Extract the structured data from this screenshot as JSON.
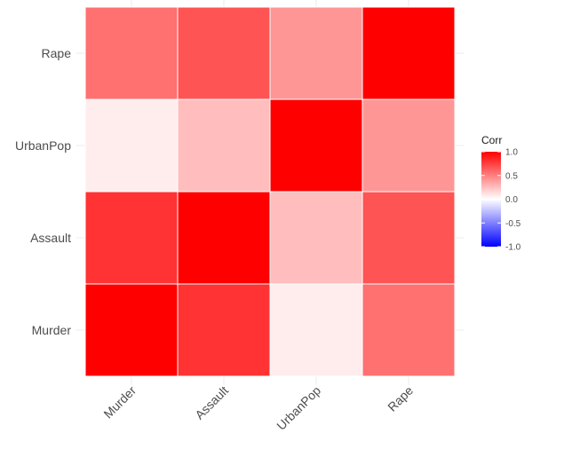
{
  "chart_data": {
    "type": "heatmap",
    "title": "",
    "xlabel": "",
    "ylabel": "",
    "x_categories": [
      "Murder",
      "Assault",
      "UrbanPop",
      "Rape"
    ],
    "y_categories": [
      "Murder",
      "Assault",
      "UrbanPop",
      "Rape"
    ],
    "values": [
      [
        1.0,
        0.8,
        0.07,
        0.56
      ],
      [
        0.8,
        1.0,
        0.26,
        0.67
      ],
      [
        0.07,
        0.26,
        1.0,
        0.41
      ],
      [
        0.56,
        0.67,
        0.41,
        1.0
      ]
    ],
    "x_tick_rotation_deg": 45,
    "grid": true,
    "legend": {
      "title": "Corr",
      "placement": "right",
      "breaks": [
        "1.0",
        "0.5",
        "0.0",
        "-0.5",
        "-1.0"
      ],
      "break_values": [
        1.0,
        0.5,
        0.0,
        -0.5,
        -1.0
      ],
      "limits": [
        -1,
        1
      ],
      "low_color": "#0000ff",
      "mid_color": "#ffffff",
      "high_color": "#ff0000"
    },
    "grid_color": "#ebebeb"
  }
}
